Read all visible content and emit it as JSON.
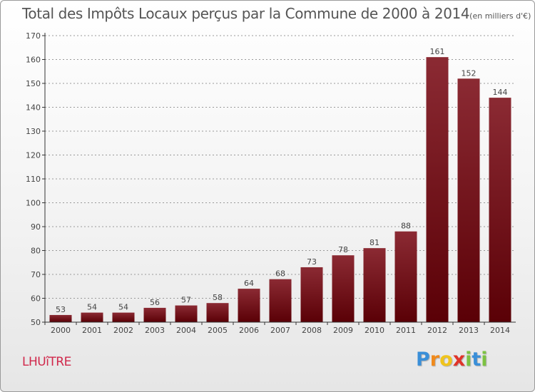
{
  "title": {
    "main": "Total des Impôts Locaux perçus par la Commune de 2000 à 2014",
    "unit": "(en milliers d'€)"
  },
  "commune": "LHUîTRE",
  "brand": {
    "letters": [
      "P",
      "r",
      "o",
      "x",
      "i",
      "t",
      "i"
    ],
    "colors": [
      "#3a8fd8",
      "#f08a1c",
      "#f0c41c",
      "#e0342a",
      "#7cc242",
      "#3a8fd8",
      "#7cc242"
    ]
  },
  "colors": {
    "bar_top": "#8b2a33",
    "bar_bottom": "#5a0006",
    "axis": "#333333",
    "grid": "#999999"
  },
  "chart_data": {
    "type": "bar",
    "title": "Total des Impôts Locaux perçus par la Commune de 2000 à 2014",
    "xlabel": "",
    "ylabel": "",
    "ylim": [
      50,
      170
    ],
    "yticks": [
      50,
      60,
      70,
      80,
      90,
      100,
      110,
      120,
      130,
      140,
      150,
      160,
      170
    ],
    "grid": true,
    "categories": [
      "2000",
      "2001",
      "2002",
      "2003",
      "2004",
      "2005",
      "2006",
      "2007",
      "2008",
      "2009",
      "2010",
      "2011",
      "2012",
      "2013",
      "2014"
    ],
    "values": [
      53,
      54,
      54,
      56,
      57,
      58,
      64,
      68,
      73,
      78,
      81,
      88,
      161,
      152,
      144
    ]
  }
}
